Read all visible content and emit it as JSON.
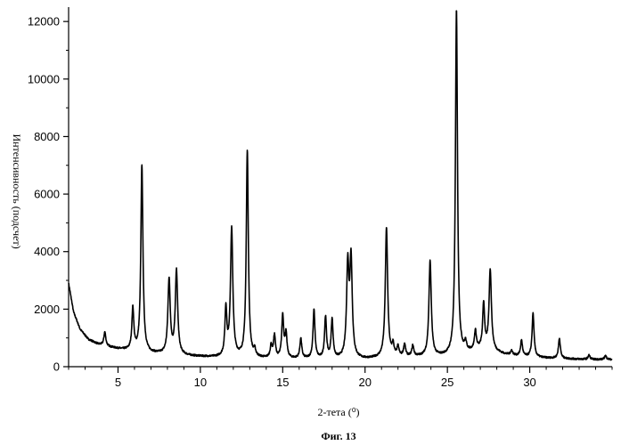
{
  "chart_data": {
    "type": "line",
    "title": "",
    "xlabel": "2-тета (⁰)",
    "ylabel": "Интенсивность (подсчет)",
    "caption": "Фиг. 13",
    "xlim": [
      2,
      35
    ],
    "ylim": [
      0,
      12500
    ],
    "x_ticks": [
      5,
      10,
      15,
      20,
      25,
      30
    ],
    "y_ticks": [
      0,
      2000,
      4000,
      6000,
      8000,
      10000,
      12000
    ],
    "grid": false,
    "legend": "none",
    "line_color": "#000000",
    "series": [
      {
        "baseline": [
          [
            2.0,
            2900
          ],
          [
            2.3,
            1900
          ],
          [
            2.7,
            1300
          ],
          [
            3.2,
            950
          ],
          [
            3.8,
            780
          ],
          [
            4.5,
            680
          ],
          [
            5.2,
            600
          ],
          [
            5.8,
            560
          ],
          [
            7.0,
            460
          ],
          [
            7.8,
            430
          ],
          [
            9.5,
            360
          ],
          [
            11.0,
            320
          ],
          [
            12.5,
            300
          ],
          [
            14.0,
            280
          ],
          [
            16.0,
            270
          ],
          [
            18.0,
            260
          ],
          [
            20.0,
            260
          ],
          [
            21.0,
            300
          ],
          [
            22.0,
            330
          ],
          [
            23.0,
            340
          ],
          [
            24.0,
            340
          ],
          [
            25.0,
            360
          ],
          [
            25.8,
            420
          ],
          [
            26.5,
            520
          ],
          [
            27.0,
            600
          ],
          [
            27.8,
            520
          ],
          [
            28.5,
            420
          ],
          [
            29.5,
            350
          ],
          [
            31.0,
            300
          ],
          [
            32.0,
            280
          ],
          [
            33.0,
            260
          ],
          [
            34.0,
            250
          ],
          [
            35.0,
            250
          ]
        ],
        "peaks": [
          {
            "x": 4.2,
            "y": 1200
          },
          {
            "x": 5.9,
            "y": 2000
          },
          {
            "x": 6.45,
            "y": 7000
          },
          {
            "x": 8.1,
            "y": 3000
          },
          {
            "x": 8.55,
            "y": 3300
          },
          {
            "x": 11.55,
            "y": 1950
          },
          {
            "x": 11.9,
            "y": 4750
          },
          {
            "x": 12.85,
            "y": 7500
          },
          {
            "x": 13.3,
            "y": 500
          },
          {
            "x": 14.3,
            "y": 700
          },
          {
            "x": 14.5,
            "y": 1050
          },
          {
            "x": 15.0,
            "y": 1750
          },
          {
            "x": 15.2,
            "y": 1100
          },
          {
            "x": 16.1,
            "y": 950
          },
          {
            "x": 16.9,
            "y": 1950
          },
          {
            "x": 17.6,
            "y": 1700
          },
          {
            "x": 18.0,
            "y": 1600
          },
          {
            "x": 18.95,
            "y": 3400
          },
          {
            "x": 19.15,
            "y": 3600
          },
          {
            "x": 21.3,
            "y": 4800
          },
          {
            "x": 21.7,
            "y": 700
          },
          {
            "x": 22.0,
            "y": 650
          },
          {
            "x": 22.4,
            "y": 750
          },
          {
            "x": 22.9,
            "y": 700
          },
          {
            "x": 23.95,
            "y": 3650
          },
          {
            "x": 25.55,
            "y": 12400
          },
          {
            "x": 26.1,
            "y": 750
          },
          {
            "x": 26.7,
            "y": 1200
          },
          {
            "x": 27.2,
            "y": 2150
          },
          {
            "x": 27.6,
            "y": 3350
          },
          {
            "x": 28.9,
            "y": 550
          },
          {
            "x": 29.5,
            "y": 900
          },
          {
            "x": 30.2,
            "y": 1850
          },
          {
            "x": 31.8,
            "y": 980
          },
          {
            "x": 33.6,
            "y": 400
          },
          {
            "x": 34.6,
            "y": 380
          }
        ]
      }
    ]
  }
}
